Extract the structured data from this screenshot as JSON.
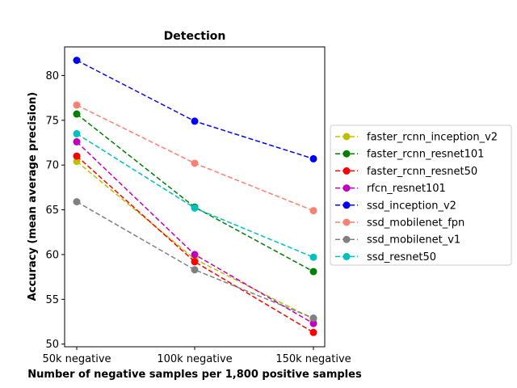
{
  "chart_data": {
    "type": "line",
    "title": "Detection",
    "xlabel": "Number of negative samples per 1,800 positive samples",
    "ylabel": "Accuracy (mean average precision)",
    "categories": [
      "50k negative",
      "100k negative",
      "150k negative"
    ],
    "yticks": [
      "50",
      "55",
      "60",
      "65",
      "70",
      "75",
      "80"
    ],
    "ylim": [
      49.7,
      83.2
    ],
    "grid": false,
    "legend_position": "right",
    "line_style": "dashed",
    "marker": "circle",
    "series": [
      {
        "name": "faster_rcnn_inception_v2",
        "color": "#bfbf00",
        "values": [
          70.4,
          59.5,
          52.8
        ]
      },
      {
        "name": "faster_rcnn_resnet101",
        "color": "#008000",
        "values": [
          75.7,
          65.3,
          58.1
        ]
      },
      {
        "name": "faster_rcnn_resnet50",
        "color": "#ff0000",
        "values": [
          71.0,
          59.2,
          51.3
        ]
      },
      {
        "name": "rfcn_resnet101",
        "color": "#bf00bf",
        "values": [
          72.6,
          60.0,
          52.3
        ]
      },
      {
        "name": "ssd_inception_v2",
        "color": "#0000ff",
        "values": [
          81.7,
          74.9,
          70.7
        ]
      },
      {
        "name": "ssd_mobilenet_fpn",
        "color": "#fa8072",
        "values": [
          76.7,
          70.2,
          64.9
        ]
      },
      {
        "name": "ssd_mobilenet_v1",
        "color": "#808080",
        "values": [
          65.9,
          58.3,
          52.9
        ]
      },
      {
        "name": "ssd_resnet50",
        "color": "#00bfbf",
        "values": [
          73.5,
          65.2,
          59.7
        ]
      }
    ]
  }
}
